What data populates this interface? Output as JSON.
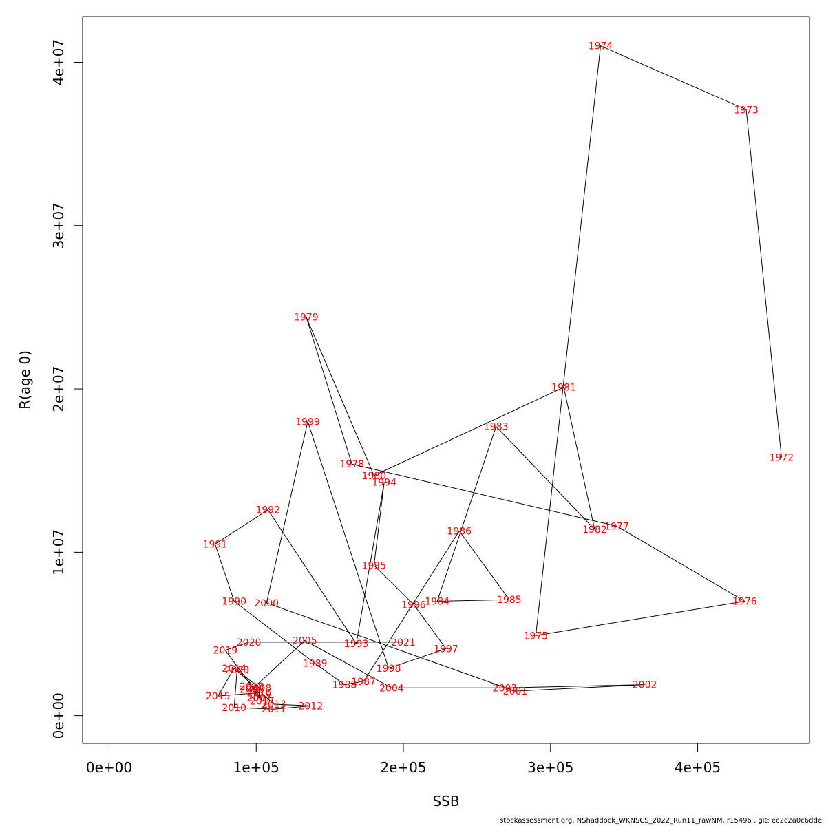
{
  "chart_data": {
    "type": "line",
    "xlabel": "SSB",
    "ylabel": "R(age 0)",
    "xlim": [
      -18000,
      476000
    ],
    "ylim": [
      -1700000,
      42800000
    ],
    "x_ticks": [
      {
        "value": 0,
        "label": "0e+00"
      },
      {
        "value": 100000,
        "label": "1e+05"
      },
      {
        "value": 200000,
        "label": "2e+05"
      },
      {
        "value": 300000,
        "label": "3e+05"
      },
      {
        "value": 400000,
        "label": "4e+05"
      }
    ],
    "y_ticks": [
      {
        "value": 0,
        "label": "0e+00"
      },
      {
        "value": 10000000,
        "label": "1e+07"
      },
      {
        "value": 20000000,
        "label": "2e+07"
      },
      {
        "value": 30000000,
        "label": "3e+07"
      },
      {
        "value": 40000000,
        "label": "4e+07"
      }
    ],
    "grid": false,
    "line_color": "#000000",
    "label_color": "#ff0000",
    "points": [
      {
        "year": "1972",
        "ssb": 457000,
        "r": 15800000
      },
      {
        "year": "1973",
        "ssb": 433000,
        "r": 37100000
      },
      {
        "year": "1974",
        "ssb": 334000,
        "r": 41000000
      },
      {
        "year": "1975",
        "ssb": 290000,
        "r": 4900000
      },
      {
        "year": "1976",
        "ssb": 432000,
        "r": 7000000
      },
      {
        "year": "1977",
        "ssb": 345000,
        "r": 11600000
      },
      {
        "year": "1978",
        "ssb": 165000,
        "r": 15400000
      },
      {
        "year": "1979",
        "ssb": 134000,
        "r": 24400000
      },
      {
        "year": "1980",
        "ssb": 180000,
        "r": 14700000
      },
      {
        "year": "1981",
        "ssb": 309000,
        "r": 20100000
      },
      {
        "year": "1982",
        "ssb": 330000,
        "r": 11400000
      },
      {
        "year": "1983",
        "ssb": 263000,
        "r": 17700000
      },
      {
        "year": "1984",
        "ssb": 223000,
        "r": 7000000
      },
      {
        "year": "1985",
        "ssb": 272000,
        "r": 7100000
      },
      {
        "year": "1986",
        "ssb": 238000,
        "r": 11300000
      },
      {
        "year": "1987",
        "ssb": 173000,
        "r": 2100000
      },
      {
        "year": "1988",
        "ssb": 160000,
        "r": 1900000
      },
      {
        "year": "1989",
        "ssb": 140000,
        "r": 3200000
      },
      {
        "year": "1990",
        "ssb": 85000,
        "r": 7000000
      },
      {
        "year": "1991",
        "ssb": 72000,
        "r": 10500000
      },
      {
        "year": "1992",
        "ssb": 108000,
        "r": 12600000
      },
      {
        "year": "1993",
        "ssb": 168000,
        "r": 4400000
      },
      {
        "year": "1994",
        "ssb": 187000,
        "r": 14300000
      },
      {
        "year": "1995",
        "ssb": 180000,
        "r": 9200000
      },
      {
        "year": "1996",
        "ssb": 207000,
        "r": 6800000
      },
      {
        "year": "1997",
        "ssb": 229000,
        "r": 4100000
      },
      {
        "year": "1998",
        "ssb": 190000,
        "r": 2900000
      },
      {
        "year": "1999",
        "ssb": 135000,
        "r": 18000000
      },
      {
        "year": "2000",
        "ssb": 107000,
        "r": 6900000
      },
      {
        "year": "2001",
        "ssb": 276000,
        "r": 1500000
      },
      {
        "year": "2002",
        "ssb": 364000,
        "r": 1900000
      },
      {
        "year": "2003",
        "ssb": 269000,
        "r": 1700000
      },
      {
        "year": "2004",
        "ssb": 192000,
        "r": 1700000
      },
      {
        "year": "2005",
        "ssb": 133000,
        "r": 4600000
      },
      {
        "year": "2006",
        "ssb": 97000,
        "r": 1600000
      },
      {
        "year": "2007",
        "ssb": 102000,
        "r": 1100000
      },
      {
        "year": "2008",
        "ssb": 102000,
        "r": 1700000
      },
      {
        "year": "2009",
        "ssb": 87000,
        "r": 2800000
      },
      {
        "year": "2010",
        "ssb": 85000,
        "r": 500000
      },
      {
        "year": "2011",
        "ssb": 112000,
        "r": 400000
      },
      {
        "year": "2012",
        "ssb": 137000,
        "r": 600000
      },
      {
        "year": "2013",
        "ssb": 112000,
        "r": 700000
      },
      {
        "year": "2014",
        "ssb": 85000,
        "r": 2900000
      },
      {
        "year": "2015",
        "ssb": 74000,
        "r": 1200000
      },
      {
        "year": "2016",
        "ssb": 102000,
        "r": 1400000
      },
      {
        "year": "2017",
        "ssb": 104000,
        "r": 900000
      },
      {
        "year": "2018",
        "ssb": 97000,
        "r": 1800000
      },
      {
        "year": "2019",
        "ssb": 79000,
        "r": 4000000
      },
      {
        "year": "2020",
        "ssb": 95000,
        "r": 4500000
      },
      {
        "year": "2021",
        "ssb": 200000,
        "r": 4500000
      }
    ]
  },
  "footer_text": "stockassessment.org, NShaddock_WKNSCS_2022_Run11_rawNM, r15496 , git: ec2c2a0c6dde"
}
